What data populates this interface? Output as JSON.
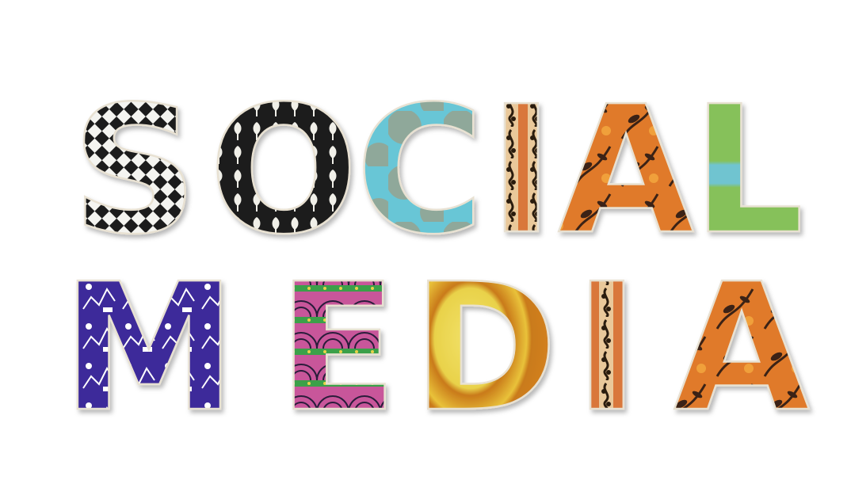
{
  "words": {
    "first": "SOCIAL",
    "second": "MEDIA"
  },
  "letters": [
    {
      "char": "S",
      "pattern": "checker-diamond",
      "fg": "#1a1a1a",
      "bg": "#f4f4f0"
    },
    {
      "char": "O",
      "pattern": "tulip",
      "fg": "#f0efe8",
      "bg": "#1c1c1c"
    },
    {
      "char": "C",
      "pattern": "dots",
      "fg": "#8fa89a",
      "bg": "#67c6d6"
    },
    {
      "char": "I",
      "pattern": "floral-strip",
      "fg": "#2a1b10",
      "bg": "#e9c89a"
    },
    {
      "char": "A",
      "pattern": "floral",
      "fg": "#3a2412",
      "bg": "#e07a2a"
    },
    {
      "char": "L",
      "pattern": "green-stripe",
      "fg": "#70c4d0",
      "bg": "#86c15a"
    },
    {
      "char": "M",
      "pattern": "toile",
      "fg": "#ffffff",
      "bg": "#3d2a9a"
    },
    {
      "char": "E",
      "pattern": "arches",
      "fg": "#2a1b3a",
      "bg": "#c8579a"
    },
    {
      "char": "D",
      "pattern": "sun",
      "fg": "#c97a1a",
      "bg": "#e9d24a"
    },
    {
      "char": "I",
      "pattern": "floral-strip",
      "fg": "#2a1b10",
      "bg": "#e9c89a"
    },
    {
      "char": "A",
      "pattern": "floral",
      "fg": "#3a2412",
      "bg": "#e07a2a"
    }
  ]
}
